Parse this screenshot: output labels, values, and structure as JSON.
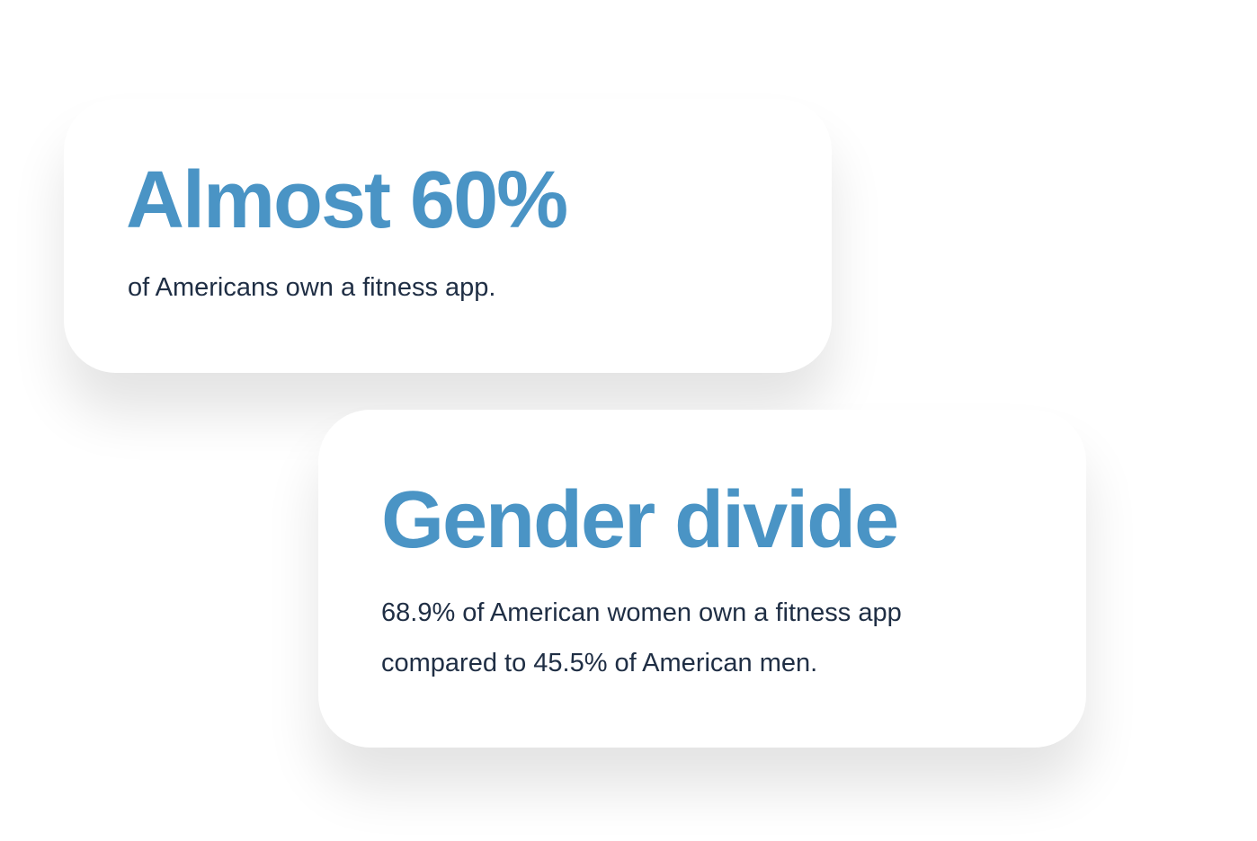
{
  "cards": [
    {
      "title": "Almost 60%",
      "text": "of Americans own a fitness app."
    },
    {
      "title": "Gender divide",
      "text": "68.9% of American women own a fitness app compared to 45.5% of American men."
    }
  ],
  "colors": {
    "accent": "#4a94c5",
    "text": "#1f2e44"
  }
}
